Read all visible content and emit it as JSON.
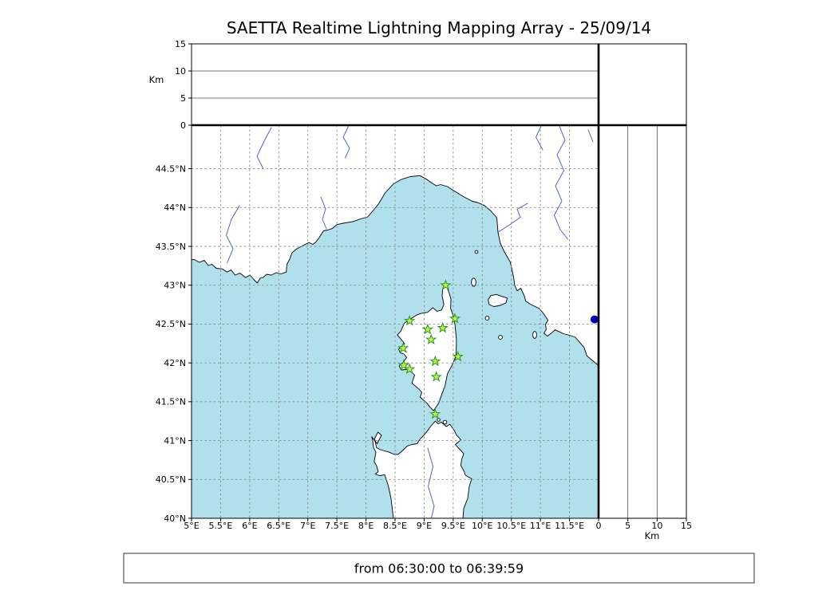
{
  "title": "SAETTA Realtime Lightning Mapping Array - 25/09/14",
  "footer": {
    "label": "from 06:30:00 to 06:39:59"
  },
  "chart_data": {
    "type": "scatter",
    "title": "SAETTA Realtime Lightning Mapping Array - 25/09/14",
    "date": "25/09/14",
    "time_window": {
      "from": "06:30:00",
      "to": "06:39:59"
    },
    "panels": {
      "map": {
        "description": "Plan view map of Corsica and the western Mediterranean with SAETTA station locations",
        "lon_range_deg_e": [
          5,
          12
        ],
        "lat_range_deg_n": [
          40,
          45.06
        ],
        "grid": "dashed every 0.5 degree",
        "lon_ticks": [
          {
            "value": 5,
            "label": "5°E"
          },
          {
            "value": 5.5,
            "label": "5.5°E"
          },
          {
            "value": 6,
            "label": "6°E"
          },
          {
            "value": 6.5,
            "label": "6.5°E"
          },
          {
            "value": 7,
            "label": "7°E"
          },
          {
            "value": 7.5,
            "label": "7.5°E"
          },
          {
            "value": 8,
            "label": "8°E"
          },
          {
            "value": 8.5,
            "label": "8.5°E"
          },
          {
            "value": 9,
            "label": "9°E"
          },
          {
            "value": 9.5,
            "label": "9.5°E"
          },
          {
            "value": 10,
            "label": "10°E"
          },
          {
            "value": 10.5,
            "label": "10.5°E"
          },
          {
            "value": 11,
            "label": "11°E"
          },
          {
            "value": 11.5,
            "label": "11.5°E"
          }
        ],
        "lat_ticks": [
          {
            "value": 40,
            "label": "40°N"
          },
          {
            "value": 40.5,
            "label": "40.5°N"
          },
          {
            "value": 41,
            "label": "41°N"
          },
          {
            "value": 41.5,
            "label": "41.5°N"
          },
          {
            "value": 42,
            "label": "42°N"
          },
          {
            "value": 42.5,
            "label": "42.5°N"
          },
          {
            "value": 43,
            "label": "43°N"
          },
          {
            "value": 43.5,
            "label": "43.5°N"
          },
          {
            "value": 44,
            "label": "44°N"
          },
          {
            "value": 44.5,
            "label": "44.5°N"
          }
        ]
      },
      "altitude": {
        "unit_label": "Km",
        "range_km": [
          0,
          15
        ],
        "ticks": [
          {
            "value": 0,
            "label": "0"
          },
          {
            "value": 5,
            "label": "5"
          },
          {
            "value": 10,
            "label": "10"
          },
          {
            "value": 15,
            "label": "15"
          }
        ]
      }
    },
    "stations": [
      {
        "lon": 9.37,
        "lat": 43.0
      },
      {
        "lon": 8.75,
        "lat": 42.54
      },
      {
        "lon": 9.06,
        "lat": 42.43
      },
      {
        "lon": 9.32,
        "lat": 42.45
      },
      {
        "lon": 9.53,
        "lat": 42.57
      },
      {
        "lon": 9.12,
        "lat": 42.3
      },
      {
        "lon": 8.64,
        "lat": 42.19
      },
      {
        "lon": 9.58,
        "lat": 42.08
      },
      {
        "lon": 8.65,
        "lat": 41.97
      },
      {
        "lon": 9.19,
        "lat": 42.02
      },
      {
        "lon": 8.75,
        "lat": 41.92
      },
      {
        "lon": 9.21,
        "lat": 41.82
      },
      {
        "lon": 9.19,
        "lat": 41.34
      }
    ],
    "sources": [
      {
        "lon": 11.93,
        "lat": 42.56,
        "color": "#0000bb"
      }
    ],
    "colors": {
      "sea": "#b0e0ec",
      "land": "#ffffff",
      "coastline": "#000000",
      "river": "#4753c4",
      "grid": "#8c8c8c",
      "station_fill": "#c8f04b",
      "station_edge": "#1f9a1f",
      "source_dot": "#0000bb"
    }
  }
}
